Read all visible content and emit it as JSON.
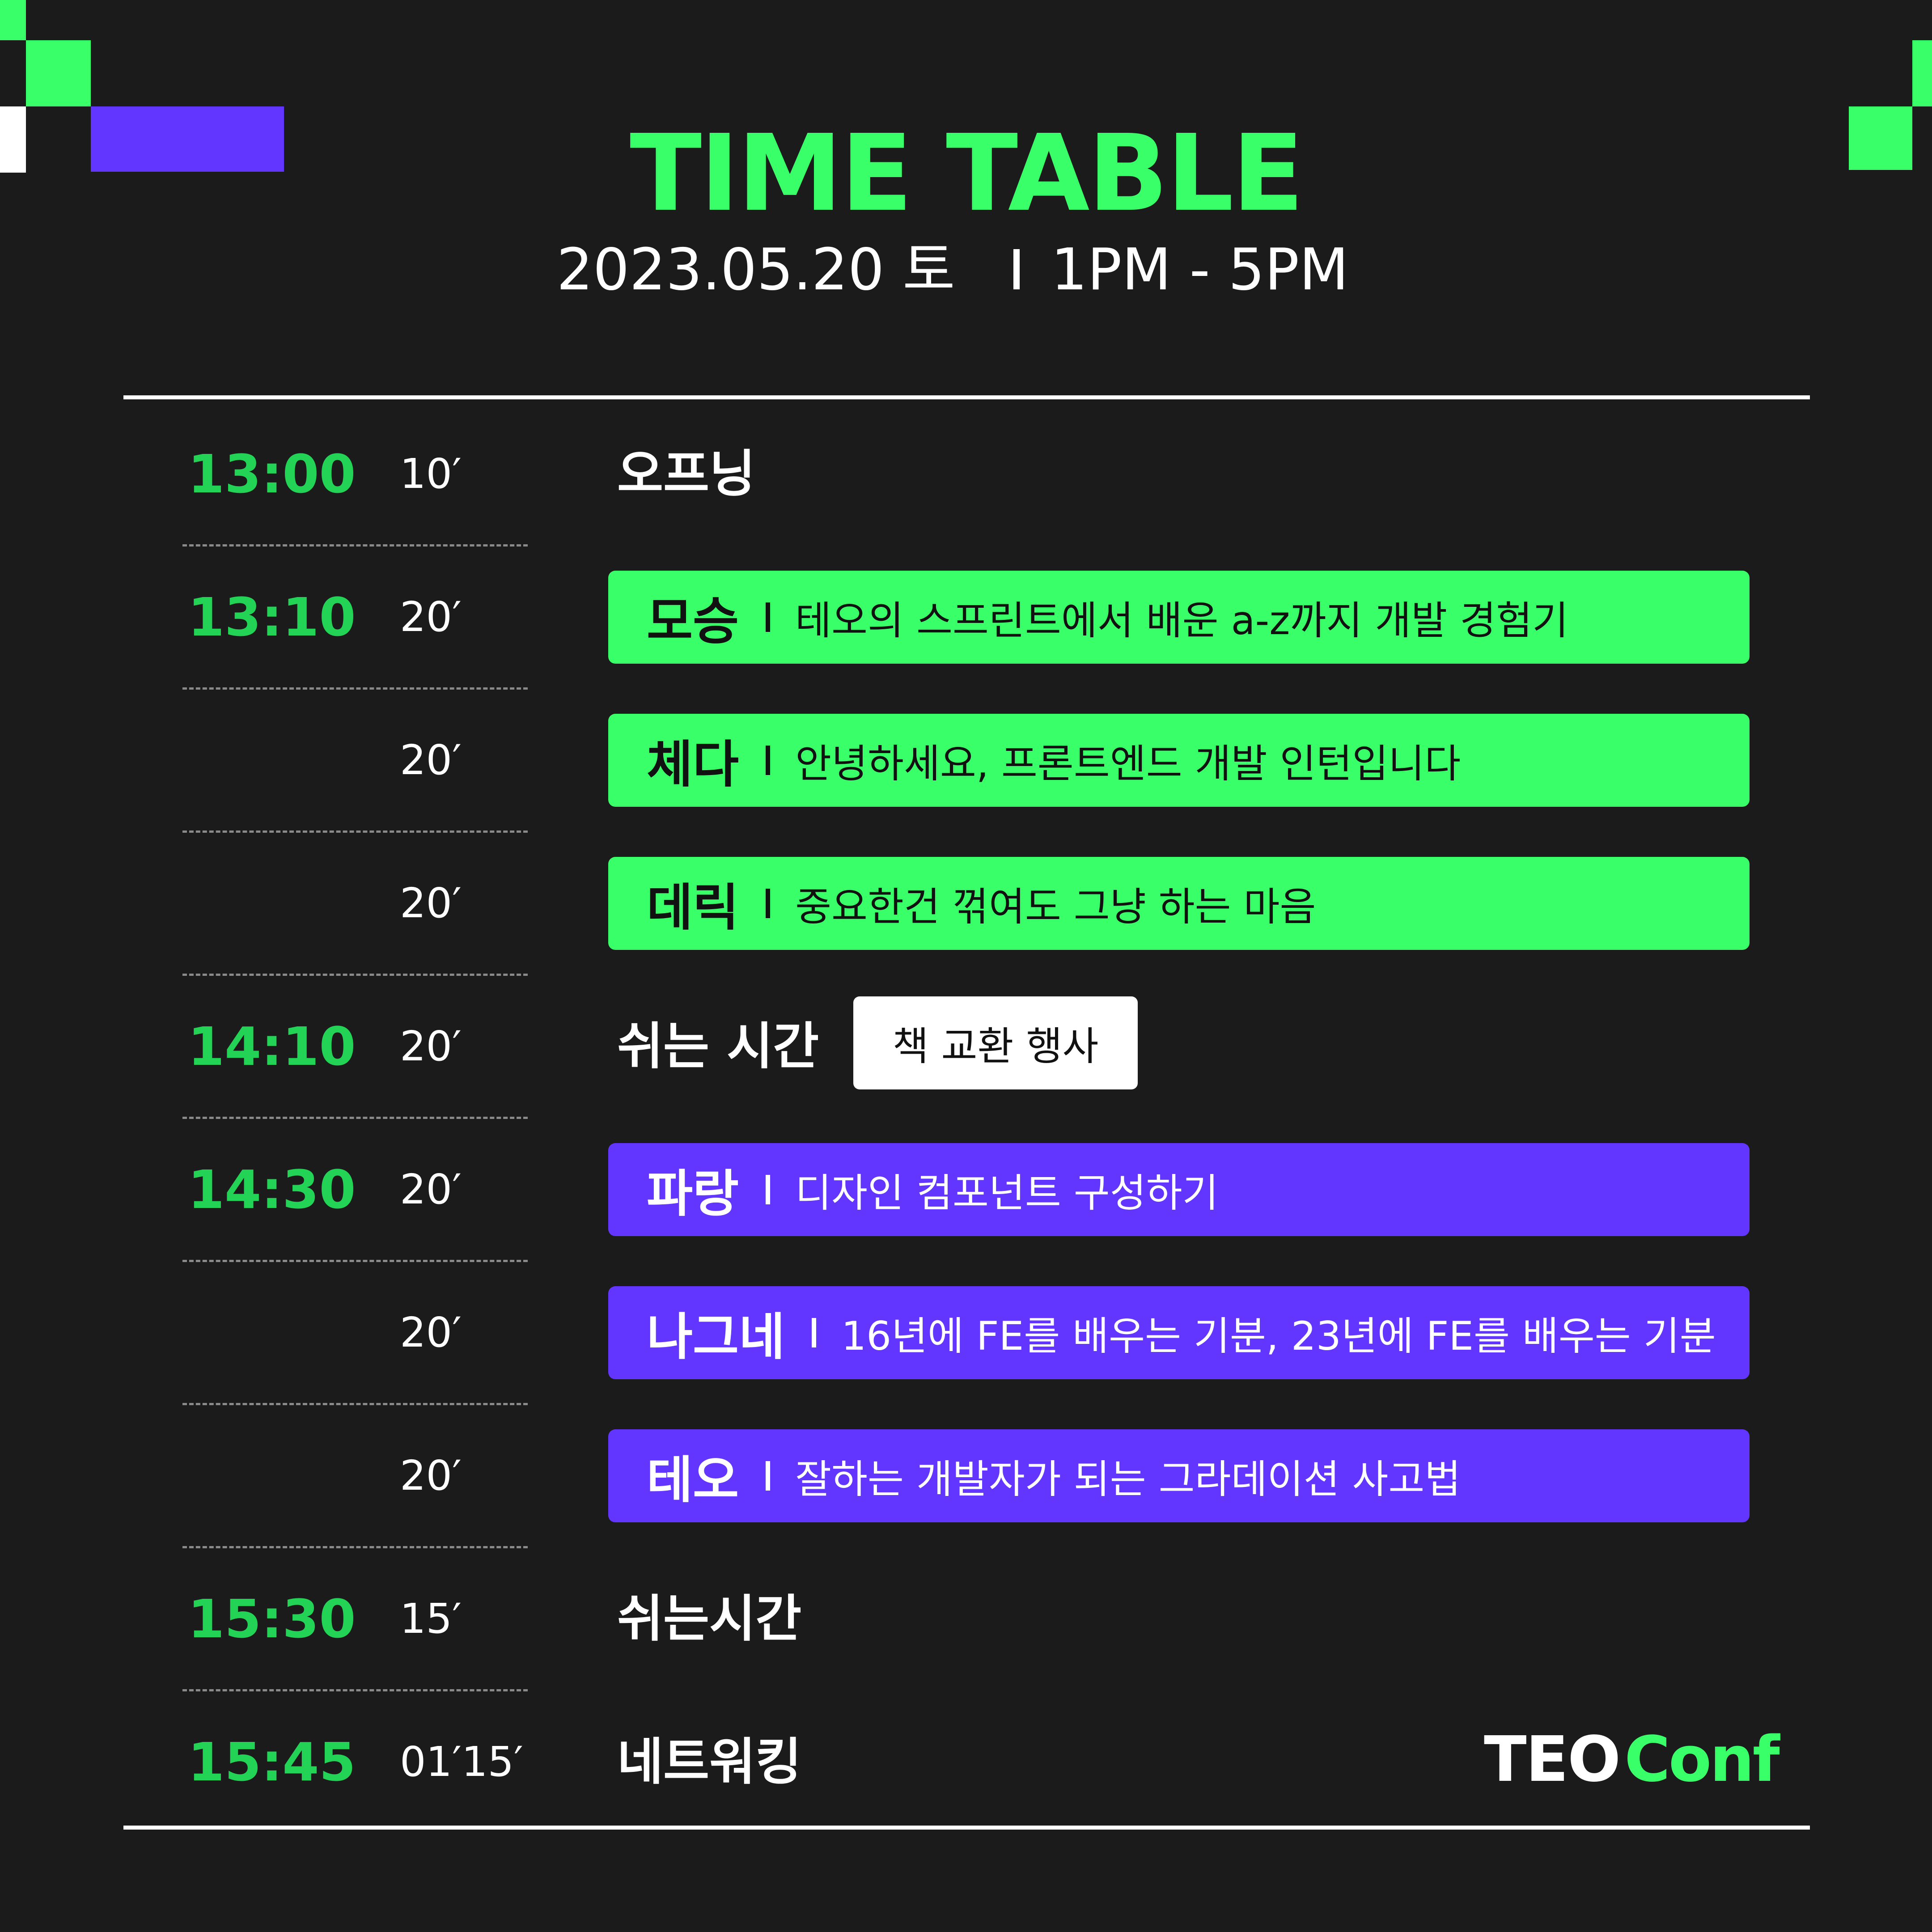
{
  "colors": {
    "background": "#1b1b1b",
    "accent_green": "#39ff68",
    "time_green": "#22d356",
    "accent_purple": "#6236ff",
    "white": "#ffffff"
  },
  "header": {
    "title": "TIME TABLE",
    "date": "2023.05.20 토",
    "hours": "1PM - 5PM"
  },
  "schedule": [
    {
      "time": "13:00",
      "duration": "10′",
      "label": "오프닝"
    },
    {
      "time": "13:10",
      "duration": "20′",
      "speaker": "모승",
      "topic": "테오의 스프린트에서 배운 a-z까지 개발 경험기",
      "color": "green"
    },
    {
      "time": "",
      "duration": "20′",
      "speaker": "체다",
      "topic": "안녕하세요, 프론트엔드 개발 인턴입니다",
      "color": "green"
    },
    {
      "time": "",
      "duration": "20′",
      "speaker": "데릭",
      "topic": "중요한건 꺾여도 그냥 하는 마음",
      "color": "green"
    },
    {
      "time": "14:10",
      "duration": "20′",
      "label": "쉬는 시간",
      "badge": "책 교환 행사"
    },
    {
      "time": "14:30",
      "duration": "20′",
      "speaker": "파랑",
      "topic": "디자인 컴포넌트 구성하기",
      "color": "purple"
    },
    {
      "time": "",
      "duration": "20′",
      "speaker": "나그네",
      "topic": "16년에 FE를 배우는 기분, 23년에 FE를 배우는 기분",
      "color": "purple"
    },
    {
      "time": "",
      "duration": "20′",
      "speaker": "테오",
      "topic": "잘하는 개발자가 되는 그라데이션 사고법",
      "color": "purple"
    },
    {
      "time": "15:30",
      "duration": "15′",
      "label": "쉬는시간"
    },
    {
      "time": "15:45",
      "duration": "01′15′",
      "label": "네트워킹"
    }
  ],
  "logo": {
    "part1": "TEO",
    "part2": "Conf"
  }
}
